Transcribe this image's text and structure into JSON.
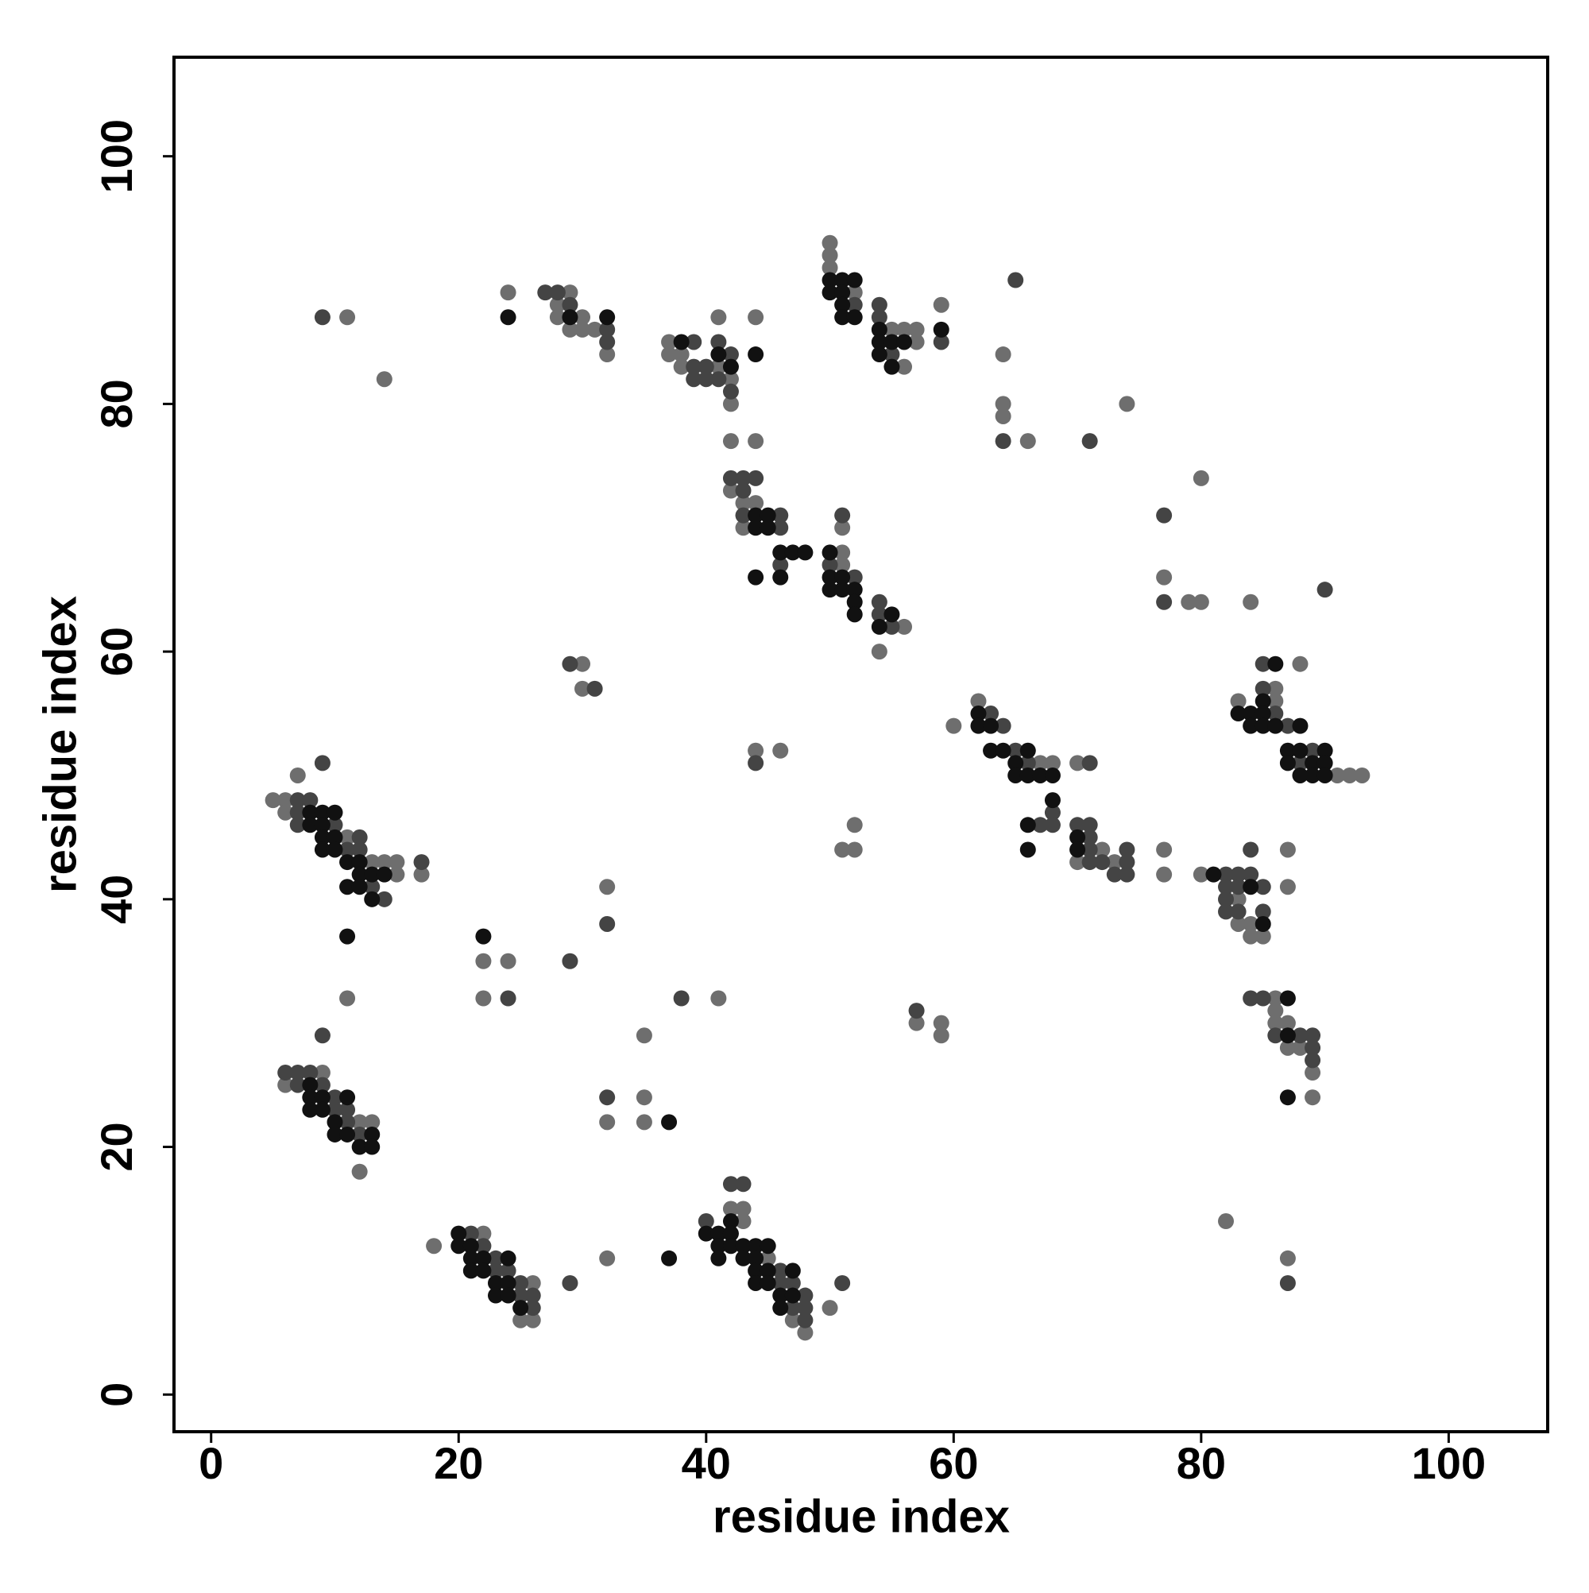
{
  "chart_data": {
    "type": "scatter",
    "x_label": "residue index",
    "y_label": "residue index",
    "xlim": [
      -3,
      108
    ],
    "ylim": [
      -3,
      108
    ],
    "xticks": [
      0,
      20,
      40,
      60,
      80,
      100
    ],
    "yticks": [
      0,
      20,
      40,
      60,
      80,
      100
    ],
    "grid": false,
    "series": [
      {
        "color": "#6e6e6e",
        "x": [
          9,
          6,
          12,
          13,
          12,
          5,
          6,
          6,
          11,
          13,
          14,
          15,
          15,
          17,
          7,
          11,
          14,
          18,
          22,
          26,
          25,
          26,
          43,
          42,
          43,
          45,
          47,
          48,
          50,
          32,
          22,
          24,
          22,
          32,
          11,
          41,
          35,
          35,
          32,
          35,
          30,
          30,
          44,
          46,
          51,
          52,
          52,
          57,
          59,
          59,
          24,
          29,
          28,
          28,
          30,
          29,
          30,
          31,
          32,
          37,
          37,
          38,
          38,
          41,
          42,
          42,
          41,
          44,
          42,
          44,
          42,
          43,
          44,
          43,
          51,
          51,
          51,
          56,
          54,
          50,
          50,
          50,
          52,
          55,
          56,
          57,
          57,
          56,
          59,
          64,
          64,
          64,
          66,
          74,
          80,
          77,
          79,
          80,
          84,
          60,
          62,
          67,
          68,
          70,
          72,
          70,
          73,
          77,
          77,
          80,
          83,
          83,
          84,
          84,
          85,
          87,
          87,
          88,
          83,
          86,
          86,
          91,
          92,
          93,
          86,
          86,
          86,
          87,
          87,
          88,
          89,
          89,
          82,
          87
        ],
        "values": [
          26,
          25,
          22,
          22,
          18,
          48,
          48,
          47,
          45,
          43,
          43,
          43,
          42,
          42,
          50,
          87,
          82,
          12,
          13,
          9,
          6,
          6,
          14,
          15,
          15,
          11,
          6,
          5,
          7,
          11,
          35,
          35,
          32,
          41,
          32,
          32,
          29,
          24,
          22,
          22,
          59,
          57,
          52,
          52,
          44,
          44,
          46,
          30,
          30,
          29,
          89,
          89,
          88,
          87,
          87,
          86,
          86,
          86,
          84,
          85,
          84,
          84,
          83,
          83,
          82,
          80,
          87,
          87,
          77,
          77,
          73,
          72,
          72,
          70,
          70,
          68,
          67,
          62,
          60,
          93,
          92,
          91,
          89,
          86,
          86,
          86,
          85,
          83,
          88,
          84,
          80,
          79,
          77,
          80,
          74,
          66,
          64,
          64,
          64,
          54,
          56,
          51,
          51,
          51,
          44,
          43,
          43,
          44,
          42,
          42,
          40,
          38,
          38,
          37,
          37,
          44,
          41,
          59,
          56,
          57,
          56,
          50,
          50,
          50,
          32,
          31,
          30,
          30,
          28,
          28,
          26,
          24,
          14,
          11
        ]
      },
      {
        "color": "#444444",
        "x": [
          6,
          7,
          8,
          7,
          9,
          10,
          10,
          11,
          11,
          12,
          9,
          7,
          8,
          7,
          7,
          10,
          12,
          11,
          12,
          17,
          13,
          14,
          9,
          9,
          21,
          22,
          23,
          23,
          24,
          25,
          25,
          26,
          26,
          29,
          40,
          42,
          43,
          46,
          46,
          47,
          48,
          47,
          48,
          48,
          51,
          24,
          29,
          32,
          38,
          32,
          29,
          31,
          44,
          57,
          27,
          28,
          29,
          32,
          32,
          39,
          41,
          42,
          39,
          40,
          39,
          40,
          41,
          42,
          42,
          43,
          44,
          43,
          43,
          46,
          46,
          46,
          51,
          50,
          52,
          54,
          54,
          55,
          52,
          54,
          54,
          55,
          59,
          65,
          64,
          71,
          77,
          77,
          90,
          63,
          64,
          65,
          66,
          71,
          68,
          67,
          68,
          70,
          71,
          71,
          71,
          74,
          71,
          72,
          74,
          73,
          74,
          82,
          83,
          84,
          82,
          83,
          85,
          82,
          82,
          83,
          85,
          84,
          85,
          85,
          86,
          87,
          89,
          88,
          84,
          85,
          86,
          88,
          89,
          89,
          89,
          87
        ],
        "values": [
          26,
          26,
          26,
          25,
          25,
          24,
          23,
          23,
          22,
          21,
          29,
          48,
          48,
          47,
          46,
          46,
          45,
          44,
          44,
          43,
          41,
          40,
          51,
          87,
          13,
          12,
          11,
          10,
          10,
          9,
          8,
          8,
          7,
          9,
          14,
          17,
          17,
          10,
          9,
          9,
          8,
          7,
          7,
          6,
          9,
          32,
          35,
          38,
          32,
          24,
          59,
          57,
          51,
          31,
          89,
          89,
          88,
          86,
          85,
          85,
          85,
          84,
          83,
          83,
          82,
          82,
          82,
          81,
          74,
          74,
          74,
          73,
          71,
          71,
          70,
          67,
          71,
          67,
          66,
          64,
          63,
          62,
          88,
          88,
          87,
          84,
          85,
          90,
          77,
          77,
          71,
          64,
          65,
          55,
          54,
          52,
          51,
          51,
          47,
          46,
          46,
          46,
          46,
          45,
          44,
          44,
          43,
          43,
          43,
          42,
          42,
          42,
          42,
          42,
          41,
          41,
          41,
          40,
          39,
          39,
          39,
          44,
          59,
          57,
          55,
          54,
          52,
          51,
          32,
          32,
          29,
          29,
          29,
          28,
          27,
          9
        ]
      },
      {
        "color": "#111111",
        "x": [
          8,
          8,
          9,
          11,
          8,
          9,
          10,
          10,
          11,
          13,
          12,
          13,
          8,
          9,
          10,
          8,
          9,
          9,
          10,
          9,
          10,
          11,
          12,
          12,
          13,
          14,
          11,
          12,
          13,
          11,
          20,
          20,
          21,
          21,
          22,
          24,
          21,
          22,
          23,
          24,
          23,
          24,
          25,
          42,
          40,
          41,
          42,
          41,
          42,
          43,
          44,
          45,
          41,
          43,
          44,
          44,
          45,
          47,
          44,
          45,
          46,
          47,
          46,
          37,
          22,
          37,
          24,
          29,
          32,
          38,
          41,
          42,
          44,
          44,
          45,
          44,
          45,
          46,
          47,
          48,
          44,
          46,
          50,
          50,
          51,
          50,
          51,
          52,
          52,
          52,
          54,
          55,
          50,
          51,
          52,
          50,
          51,
          51,
          51,
          52,
          54,
          54,
          55,
          56,
          54,
          55,
          59,
          62,
          62,
          63,
          63,
          64,
          66,
          65,
          65,
          66,
          67,
          68,
          68,
          66,
          66,
          70,
          70,
          81,
          84,
          85,
          86,
          85,
          83,
          84,
          85,
          84,
          85,
          86,
          88,
          87,
          88,
          90,
          87,
          89,
          90,
          88,
          89,
          90,
          87,
          87,
          87
        ],
        "values": [
          25,
          24,
          24,
          24,
          23,
          23,
          22,
          21,
          21,
          21,
          20,
          20,
          47,
          47,
          47,
          46,
          46,
          45,
          45,
          44,
          44,
          43,
          43,
          42,
          42,
          42,
          41,
          41,
          40,
          37,
          13,
          12,
          12,
          11,
          11,
          11,
          10,
          10,
          9,
          9,
          8,
          8,
          7,
          14,
          13,
          13,
          13,
          12,
          12,
          12,
          12,
          12,
          11,
          11,
          11,
          10,
          10,
          10,
          9,
          9,
          8,
          8,
          7,
          11,
          37,
          22,
          87,
          87,
          87,
          85,
          84,
          83,
          84,
          71,
          71,
          70,
          70,
          68,
          68,
          68,
          66,
          66,
          68,
          66,
          66,
          65,
          65,
          65,
          64,
          63,
          62,
          63,
          90,
          90,
          90,
          89,
          89,
          88,
          87,
          87,
          86,
          85,
          85,
          85,
          84,
          83,
          86,
          55,
          54,
          54,
          52,
          52,
          52,
          51,
          50,
          50,
          50,
          50,
          48,
          46,
          44,
          45,
          44,
          42,
          41,
          38,
          59,
          56,
          55,
          55,
          55,
          54,
          54,
          54,
          54,
          52,
          52,
          52,
          51,
          51,
          51,
          50,
          50,
          50,
          32,
          29,
          24
        ]
      }
    ]
  }
}
